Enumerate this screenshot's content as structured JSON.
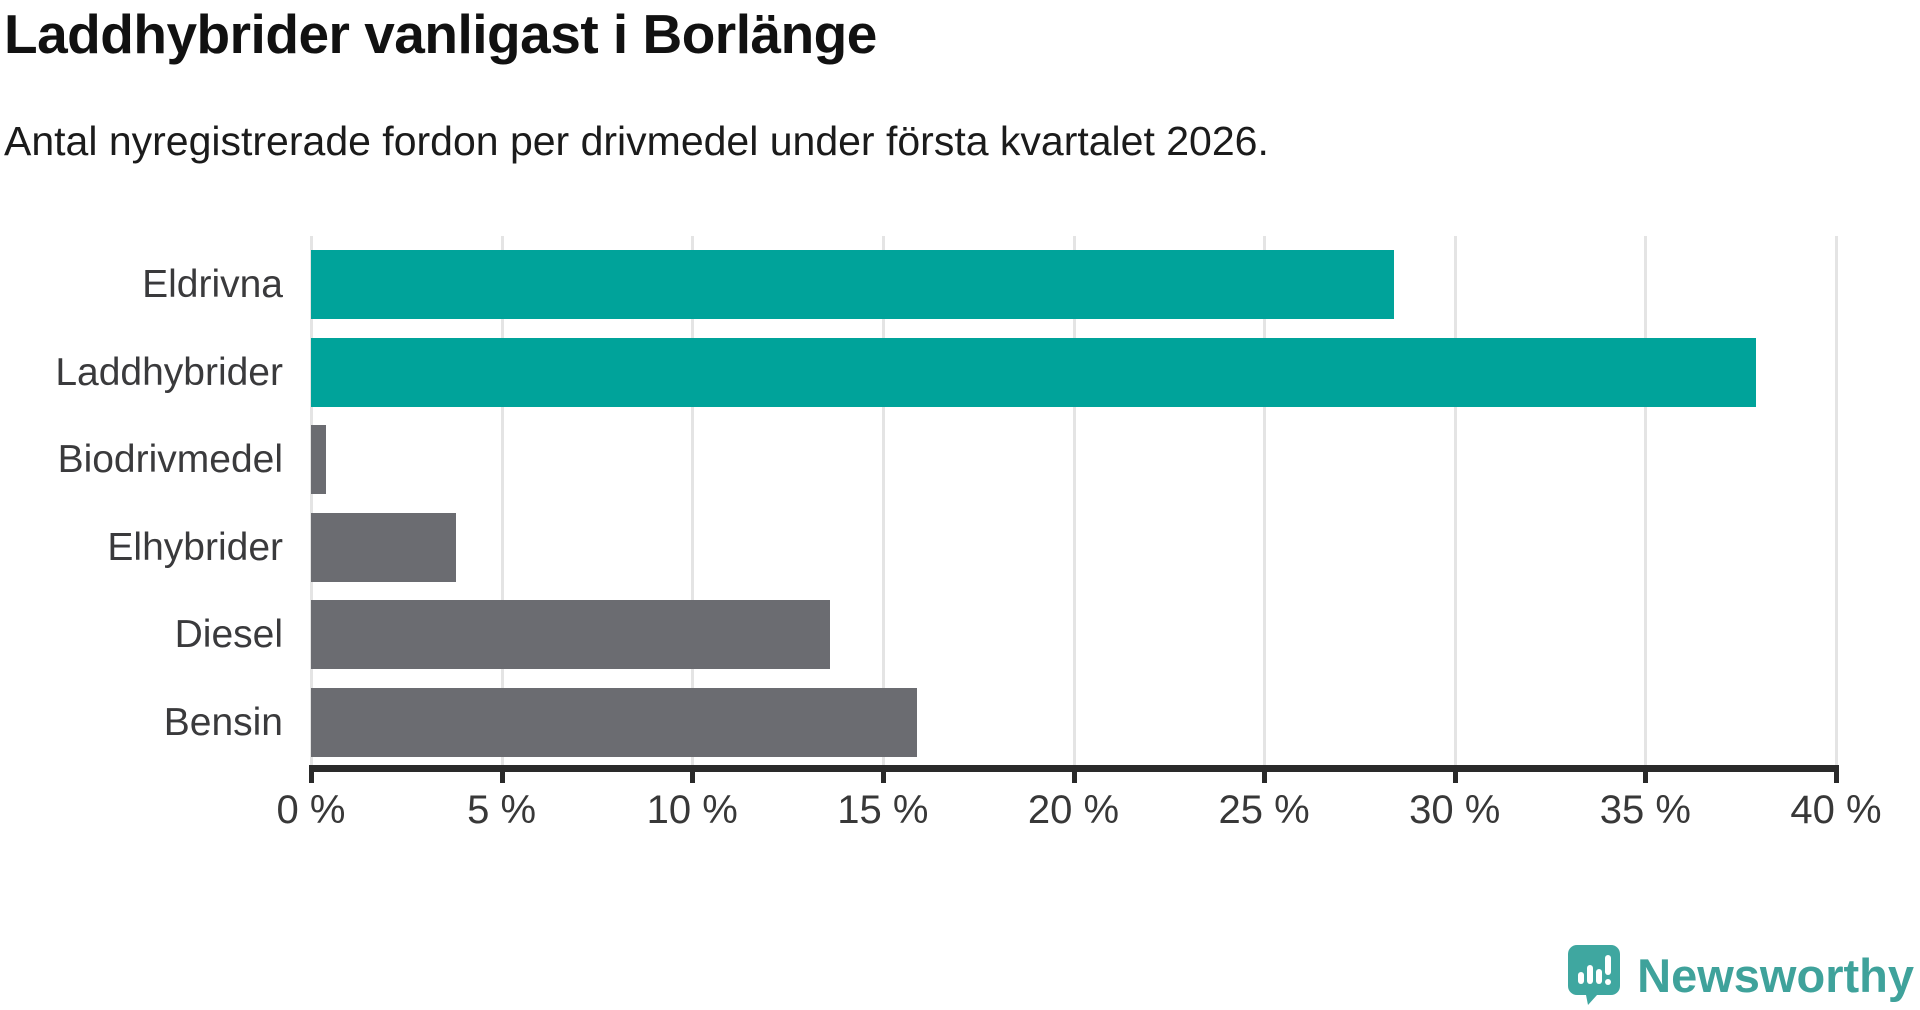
{
  "chart_data": {
    "type": "bar",
    "orientation": "horizontal",
    "title": "Laddhybrider vanligast i Borlänge",
    "subtitle": "Antal nyregistrerade fordon per drivmedel under första kvartalet 2026.",
    "categories": [
      "Eldrivna",
      "Laddhybrider",
      "Biodrivmedel",
      "Elhybrider",
      "Diesel",
      "Bensin"
    ],
    "values": [
      28.4,
      37.9,
      0.4,
      3.8,
      13.6,
      15.9
    ],
    "unit": "%",
    "highlighted_categories": [
      "Eldrivna",
      "Laddhybrider"
    ],
    "xlim": [
      0,
      40
    ],
    "x_ticks": [
      0,
      5,
      10,
      15,
      20,
      25,
      30,
      35,
      40
    ],
    "x_tick_labels": [
      "0 %",
      "5 %",
      "10 %",
      "15 %",
      "20 %",
      "25 %",
      "30 %",
      "35 %",
      "40 %"
    ],
    "grid": "vertical-gridlines",
    "legend": "none",
    "colors": {
      "highlight": "#00a39a",
      "default": "#6b6c71"
    }
  },
  "footer": {
    "brand": "Newsworthy",
    "logo_icon": "newsworthy-chart-bubble-icon",
    "brand_color": "#3fa29b",
    "icon_color": "#3fa7a0"
  }
}
